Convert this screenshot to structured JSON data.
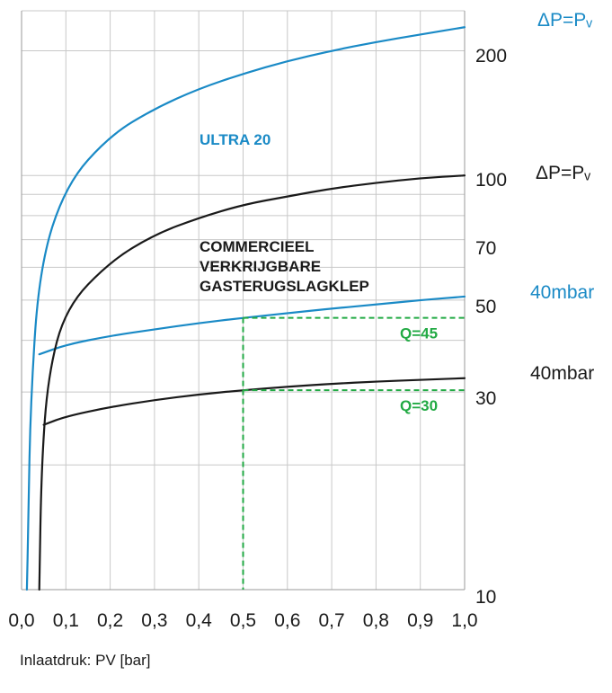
{
  "chart_data": {
    "type": "line",
    "title": "",
    "xlabel": "Inlaatdruk: PV [bar]",
    "ylabel": "",
    "x_ticks": [
      "0,0",
      "0,1",
      "0,2",
      "0,3",
      "0,4",
      "0,5",
      "0,6",
      "0,7",
      "0,8",
      "0,9",
      "1,0"
    ],
    "y_ticks": [
      "10",
      "30",
      "50",
      "70",
      "100",
      "200"
    ],
    "y_scale": "log",
    "xlim": [
      0,
      1
    ],
    "ylim": [
      10,
      250
    ],
    "grid": true,
    "series": [
      {
        "name": "ULTRA 20",
        "condition": "ΔP=Pᵥ",
        "color": "#1a8ac6",
        "points": [
          [
            0.012,
            10
          ],
          [
            0.015,
            14
          ],
          [
            0.02,
            28
          ],
          [
            0.04,
            60
          ],
          [
            0.1,
            95
          ],
          [
            0.2,
            125
          ],
          [
            0.3,
            145
          ],
          [
            0.4,
            162
          ],
          [
            0.5,
            176
          ],
          [
            0.6,
            189
          ],
          [
            0.7,
            200
          ],
          [
            0.8,
            210
          ],
          [
            0.9,
            219
          ],
          [
            1.0,
            228
          ]
        ]
      },
      {
        "name": "ULTRA 20",
        "condition": "40mbar",
        "color": "#1a8ac6",
        "points": [
          [
            0.04,
            37
          ],
          [
            0.1,
            39
          ],
          [
            0.2,
            41
          ],
          [
            0.3,
            42.5
          ],
          [
            0.4,
            44
          ],
          [
            0.5,
            45.3
          ],
          [
            0.6,
            46.5
          ],
          [
            0.7,
            47.7
          ],
          [
            0.8,
            48.8
          ],
          [
            0.9,
            50
          ],
          [
            1.0,
            51
          ]
        ]
      },
      {
        "name": "COMMERCIEEL VERKRIJGBARE GASTERUGSLAGKLEP",
        "condition": "ΔP=Pᵥ",
        "color": "#1a1a1a",
        "points": [
          [
            0.04,
            10
          ],
          [
            0.045,
            20
          ],
          [
            0.06,
            33
          ],
          [
            0.1,
            48
          ],
          [
            0.2,
            62
          ],
          [
            0.3,
            72
          ],
          [
            0.4,
            79
          ],
          [
            0.5,
            85
          ],
          [
            0.6,
            89
          ],
          [
            0.7,
            93
          ],
          [
            0.8,
            96
          ],
          [
            0.9,
            98.5
          ],
          [
            1.0,
            100
          ]
        ]
      },
      {
        "name": "COMMERCIEEL VERKRIJGBARE GASTERUGSLAGKLEP",
        "condition": "40mbar",
        "color": "#1a1a1a",
        "points": [
          [
            0.05,
            25
          ],
          [
            0.1,
            26.2
          ],
          [
            0.2,
            27.6
          ],
          [
            0.3,
            28.7
          ],
          [
            0.4,
            29.6
          ],
          [
            0.5,
            30.3
          ],
          [
            0.6,
            30.9
          ],
          [
            0.7,
            31.4
          ],
          [
            0.8,
            31.8
          ],
          [
            0.9,
            32.1
          ],
          [
            1.0,
            32.4
          ]
        ]
      }
    ],
    "labels": {
      "ultra20": "ULTRA 20",
      "commercial": [
        "COMMERCIEEL",
        "VERKRIJGBARE",
        "GASTERUGSLAGKLEP"
      ],
      "right_top": "ΔP=Pᵥ",
      "right_mid": "ΔP=Pᵥ",
      "right_blue": "40mbar",
      "right_black": "40mbar"
    },
    "annotations": [
      {
        "label": "Q=45",
        "x": 0.5,
        "y": 45.3,
        "color": "#22aa44"
      },
      {
        "label": "Q=30",
        "x": 0.5,
        "y": 30.3,
        "color": "#22aa44"
      }
    ]
  }
}
